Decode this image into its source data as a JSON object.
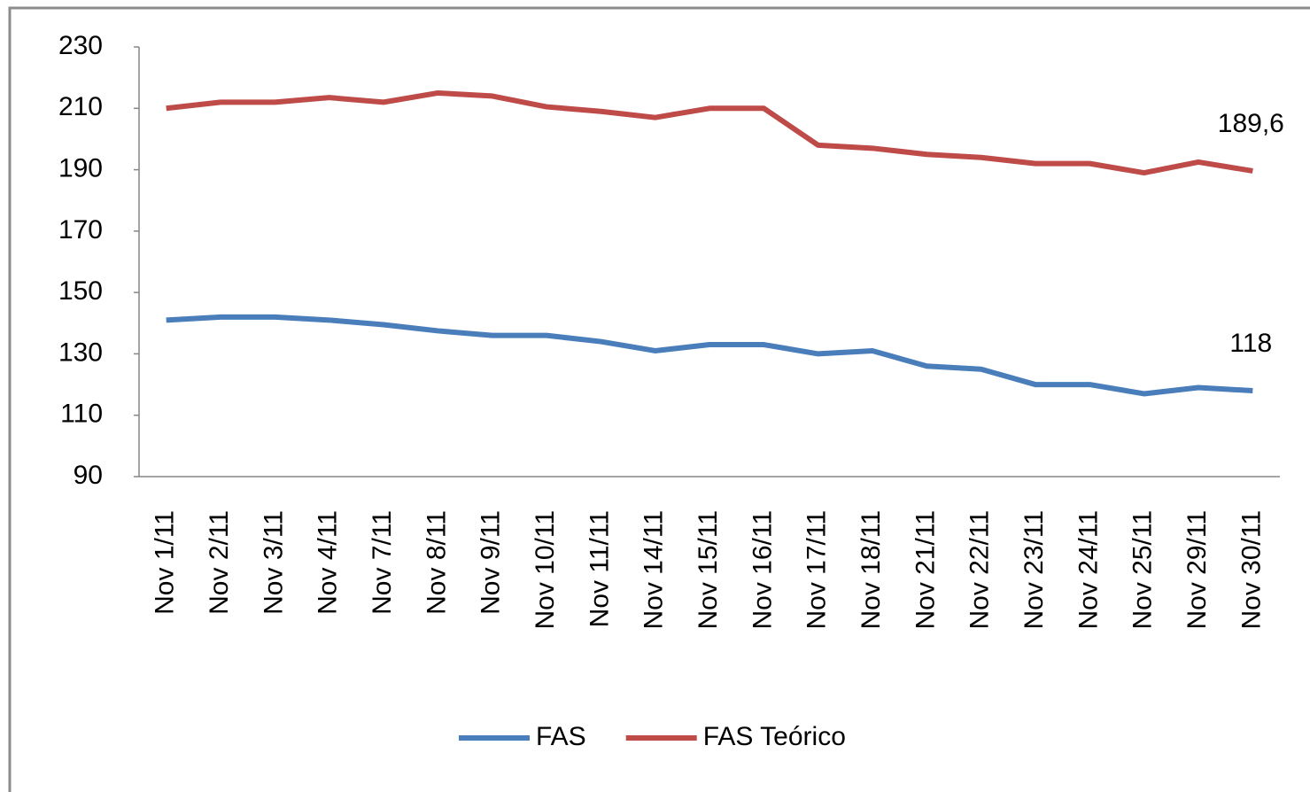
{
  "chart_data": {
    "type": "line",
    "categories": [
      "Nov 1/11",
      "Nov 2/11",
      "Nov 3/11",
      "Nov 4/11",
      "Nov 7/11",
      "Nov 8/11",
      "Nov 9/11",
      "Nov 10/11",
      "Nov 11/11",
      "Nov 14/11",
      "Nov 15/11",
      "Nov 16/11",
      "Nov 17/11",
      "Nov 18/11",
      "Nov 21/11",
      "Nov 22/11",
      "Nov 23/11",
      "Nov 24/11",
      "Nov 25/11",
      "Nov 29/11",
      "Nov 30/11"
    ],
    "series": [
      {
        "name": "FAS",
        "color": "#4a7ebb",
        "values": [
          141,
          142,
          142,
          141,
          139.5,
          137.5,
          136,
          136,
          134,
          131,
          133,
          133,
          130,
          131,
          126,
          125,
          120,
          120,
          117,
          119,
          118
        ],
        "value_labels": [
          null,
          null,
          null,
          null,
          null,
          null,
          null,
          null,
          null,
          null,
          null,
          null,
          null,
          null,
          null,
          null,
          null,
          null,
          null,
          null,
          "118"
        ]
      },
      {
        "name": "FAS Teórico",
        "color": "#be4b48",
        "values": [
          210,
          212,
          212,
          213.5,
          212,
          215,
          214,
          210.5,
          209,
          207,
          210,
          210,
          198,
          197,
          195,
          194,
          192,
          192,
          189,
          192.5,
          189.6
        ],
        "value_labels": [
          null,
          null,
          null,
          null,
          null,
          null,
          null,
          null,
          null,
          null,
          null,
          null,
          null,
          null,
          null,
          null,
          null,
          null,
          null,
          null,
          "189,6"
        ]
      }
    ],
    "ylim": [
      90,
      230
    ],
    "yticks": [
      90,
      110,
      130,
      150,
      170,
      190,
      210,
      230
    ],
    "grid": false,
    "legend": "bottom"
  }
}
